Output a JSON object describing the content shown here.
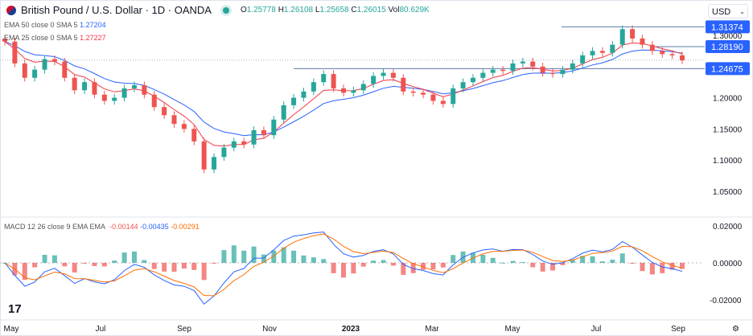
{
  "header": {
    "title": "British Pound / U.S. Dollar · 1D · OANDA",
    "open_label": "O",
    "open": "1.25778",
    "high_label": "H",
    "high": "1.26108",
    "low_label": "L",
    "low": "1.25658",
    "close_label": "C",
    "close": "1.26015",
    "vol_label": "Vol",
    "vol": "80.629K"
  },
  "indicators": {
    "ema50": {
      "label": "EMA 50 close 0 SMA 5",
      "value": "1.27204",
      "color": "#2962ff"
    },
    "ema25": {
      "label": "EMA 25 close 0 SMA 5",
      "value": "1.27227",
      "color": "#f23645"
    },
    "macd": {
      "label": "MACD 12 26 close 9 EMA EMA",
      "hist": "-0.00144",
      "macd": "-0.00435",
      "signal": "-0.00291",
      "macd_color": "#2962ff",
      "signal_color": "#ff6d00"
    }
  },
  "currency": "USD",
  "colors": {
    "up": "#26a69a",
    "down": "#ef5350",
    "badge": "#2962ff"
  },
  "chart_data": {
    "type": "candlestick",
    "y_ticks": [
      "1.30000",
      "1.20000",
      "1.15000",
      "1.10000",
      "1.05000"
    ],
    "y_tick_values": [
      1.3,
      1.2,
      1.15,
      1.1,
      1.05
    ],
    "ylim": [
      1.03,
      1.325
    ],
    "x_ticks": [
      "May",
      "Jul",
      "Sep",
      "Nov",
      "2023",
      "Mar",
      "May",
      "Jul",
      "Sep"
    ],
    "closes": [
      1.29,
      1.255,
      1.232,
      1.245,
      1.262,
      1.258,
      1.232,
      1.212,
      1.225,
      1.205,
      1.195,
      1.2,
      1.215,
      1.22,
      1.205,
      1.185,
      1.172,
      1.158,
      1.15,
      1.13,
      1.085,
      1.105,
      1.12,
      1.13,
      1.125,
      1.148,
      1.14,
      1.165,
      1.188,
      1.2,
      1.21,
      1.225,
      1.238,
      1.215,
      1.208,
      1.212,
      1.222,
      1.235,
      1.24,
      1.232,
      1.21,
      1.208,
      1.205,
      1.195,
      1.19,
      1.215,
      1.225,
      1.232,
      1.24,
      1.245,
      1.243,
      1.255,
      1.258,
      1.25,
      1.24,
      1.238,
      1.245,
      1.255,
      1.268,
      1.275,
      1.272,
      1.285,
      1.31,
      1.295,
      1.285,
      1.275,
      1.27,
      1.268,
      1.26
    ],
    "levels": [
      "1.31374",
      "1.28190",
      "1.24675"
    ],
    "level_values": [
      1.31374,
      1.2819,
      1.24675
    ],
    "current_price": 1.26015,
    "macd_ticks": [
      "0.02000",
      "0.00000",
      "-0.02000"
    ],
    "macd_tick_values": [
      0.02,
      0,
      -0.02
    ]
  }
}
